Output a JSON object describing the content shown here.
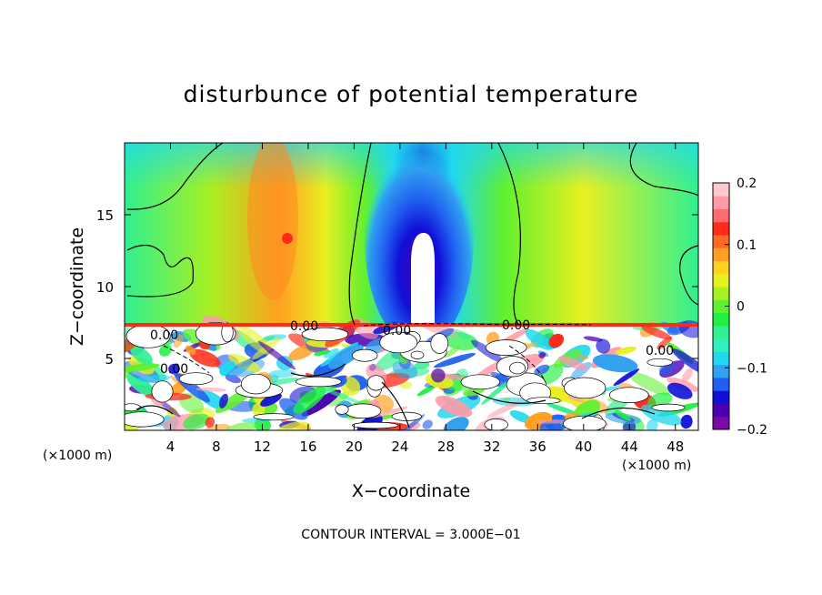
{
  "chart_data": {
    "type": "heatmap",
    "title": "disturbunce of potential temperature",
    "xlabel": "X−coordinate",
    "ylabel": "Z−coordinate",
    "x_unit": "(×1000 m)",
    "x_unit_right": "(×1000 m)",
    "xlim": [
      0,
      50
    ],
    "ylim": [
      0,
      20
    ],
    "x_ticks": [
      4,
      8,
      12,
      16,
      20,
      24,
      28,
      32,
      36,
      40,
      44,
      48
    ],
    "y_ticks": [
      5,
      10,
      15
    ],
    "colorbar": {
      "range": [
        -0.2,
        0.2
      ],
      "tick_labels": [
        "0.2",
        "0.1",
        "0",
        "−0.1",
        "−0.2"
      ],
      "tick_values": [
        0.2,
        0.1,
        0,
        -0.1,
        -0.2
      ],
      "colors": [
        "#7b0aa8",
        "#4a00b0",
        "#1010d8",
        "#2060f0",
        "#30a0f0",
        "#20d8f0",
        "#30f0c0",
        "#30f090",
        "#20f040",
        "#60f030",
        "#a8f020",
        "#e8f020",
        "#ffd020",
        "#ffa020",
        "#ff6a20",
        "#ff2a1a",
        "#ff6a70",
        "#ff9aa8",
        "#ffc8cc"
      ]
    },
    "contour_labels": [
      "0.00",
      "0.00",
      "0.00",
      "0.00",
      "0.00",
      "0.00"
    ],
    "contour_interval_text": "CONTOUR INTERVAL = 3.000E−01"
  }
}
